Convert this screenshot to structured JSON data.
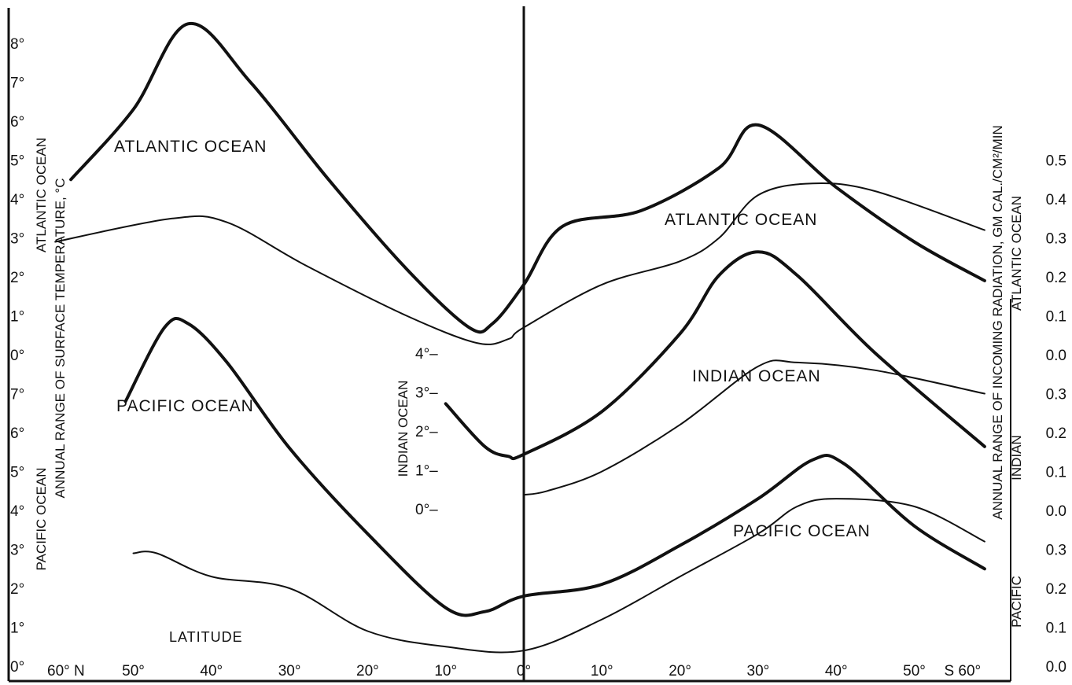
{
  "chart_data": {
    "type": "line",
    "grid": false,
    "x_ticks": [
      "60° N",
      "50°",
      "40°",
      "30°",
      "20°",
      "10°",
      "0°",
      "10°",
      "20°",
      "30°",
      "40°",
      "50°",
      "S 60°"
    ],
    "x_label": "LATITUDE",
    "left_axis_label": "ANNUAL RANGE OF SURFACE TEMPERATURE, °C",
    "right_axis_label": "ANNUAL RANGE OF INCOMING RADIATION, GM CAL./CM²/MIN",
    "left_groups": [
      {
        "name": "ATLANTIC OCEAN",
        "ticks": [
          "3°",
          "4°",
          "5°",
          "6°",
          "7°",
          "8°"
        ]
      },
      {
        "name": "PACIFIC OCEAN",
        "ticks": [
          "0°",
          "1°",
          "2°",
          "3°",
          "4°",
          "5°",
          "6°",
          "7°",
          "0°",
          "1°",
          "2°"
        ]
      }
    ],
    "indian_axis": {
      "name": "INDIAN OCEAN",
      "ticks": [
        "0°–",
        "1°–",
        "2°–",
        "3°–",
        "4°–"
      ]
    },
    "right_groups": [
      {
        "name": "ATLANTIC OCEAN",
        "ticks": [
          "0.0",
          "0.1",
          "0.2",
          "0.3",
          "0.4",
          "0.5"
        ]
      },
      {
        "name": "INDIAN",
        "ticks": [
          "0.0",
          "0.1",
          "0.2",
          "0.3"
        ]
      },
      {
        "name": "PACIFIC",
        "ticks": [
          "0.0",
          "0.1",
          "0.2",
          "0.3"
        ]
      }
    ],
    "series": [
      {
        "name": "ATLANTIC OCEAN",
        "measure": "surface temperature range (°C)",
        "style": "thick",
        "x": [
          -58,
          -50,
          -43,
          -35,
          -25,
          -15,
          -7,
          -4,
          0,
          5,
          15,
          25,
          30,
          40,
          50,
          59
        ],
        "y": [
          4.5,
          6.3,
          8.5,
          7.0,
          4.5,
          2.2,
          0.7,
          0.8,
          1.8,
          3.3,
          3.7,
          4.8,
          5.9,
          4.3,
          2.9,
          1.9
        ]
      },
      {
        "name": "ATLANTIC OCEAN",
        "measure": "incoming radiation range (gm cal/cm²/min)",
        "style": "thin",
        "x": [
          -60,
          -45,
          -38,
          -28,
          -15,
          -6,
          -2,
          0,
          10,
          20,
          25,
          30,
          37,
          45,
          59
        ],
        "y": [
          0.29,
          0.35,
          0.34,
          0.23,
          0.1,
          0.03,
          0.04,
          0.07,
          0.18,
          0.24,
          0.3,
          0.41,
          0.44,
          0.42,
          0.32
        ]
      },
      {
        "name": "INDIAN OCEAN",
        "measure": "surface temperature range (°C)",
        "style": "thick",
        "x": [
          -10,
          -5,
          -2,
          0,
          10,
          20,
          25,
          30,
          35,
          45,
          59
        ],
        "y": [
          2.7,
          1.6,
          1.35,
          1.4,
          2.5,
          4.5,
          6.0,
          6.6,
          6.0,
          4.0,
          1.6
        ]
      },
      {
        "name": "INDIAN OCEAN",
        "measure": "incoming radiation range (gm cal/cm²/min)",
        "style": "thin",
        "x": [
          0,
          3,
          10,
          20,
          30,
          35,
          45,
          59
        ],
        "y": [
          0.04,
          0.05,
          0.1,
          0.22,
          0.37,
          0.38,
          0.36,
          0.3
        ]
      },
      {
        "name": "PACIFIC OCEAN",
        "measure": "surface temperature range (°C)",
        "style": "thick",
        "x": [
          -51,
          -46,
          -43,
          -38,
          -30,
          -20,
          -10,
          -5,
          0,
          10,
          20,
          30,
          37,
          41,
          50,
          59
        ],
        "y": [
          6.8,
          8.7,
          8.8,
          7.8,
          5.6,
          3.4,
          1.5,
          1.4,
          1.8,
          2.1,
          3.1,
          4.3,
          5.3,
          5.2,
          3.6,
          2.5
        ]
      },
      {
        "name": "PACIFIC OCEAN",
        "measure": "incoming radiation range (gm cal/cm²/min)",
        "style": "thin",
        "x": [
          -50,
          -47,
          -40,
          -30,
          -20,
          -10,
          0,
          10,
          20,
          30,
          35,
          40,
          50,
          59
        ],
        "y": [
          0.29,
          0.29,
          0.23,
          0.2,
          0.09,
          0.05,
          0.04,
          0.12,
          0.23,
          0.34,
          0.41,
          0.43,
          0.41,
          0.32
        ]
      }
    ]
  }
}
